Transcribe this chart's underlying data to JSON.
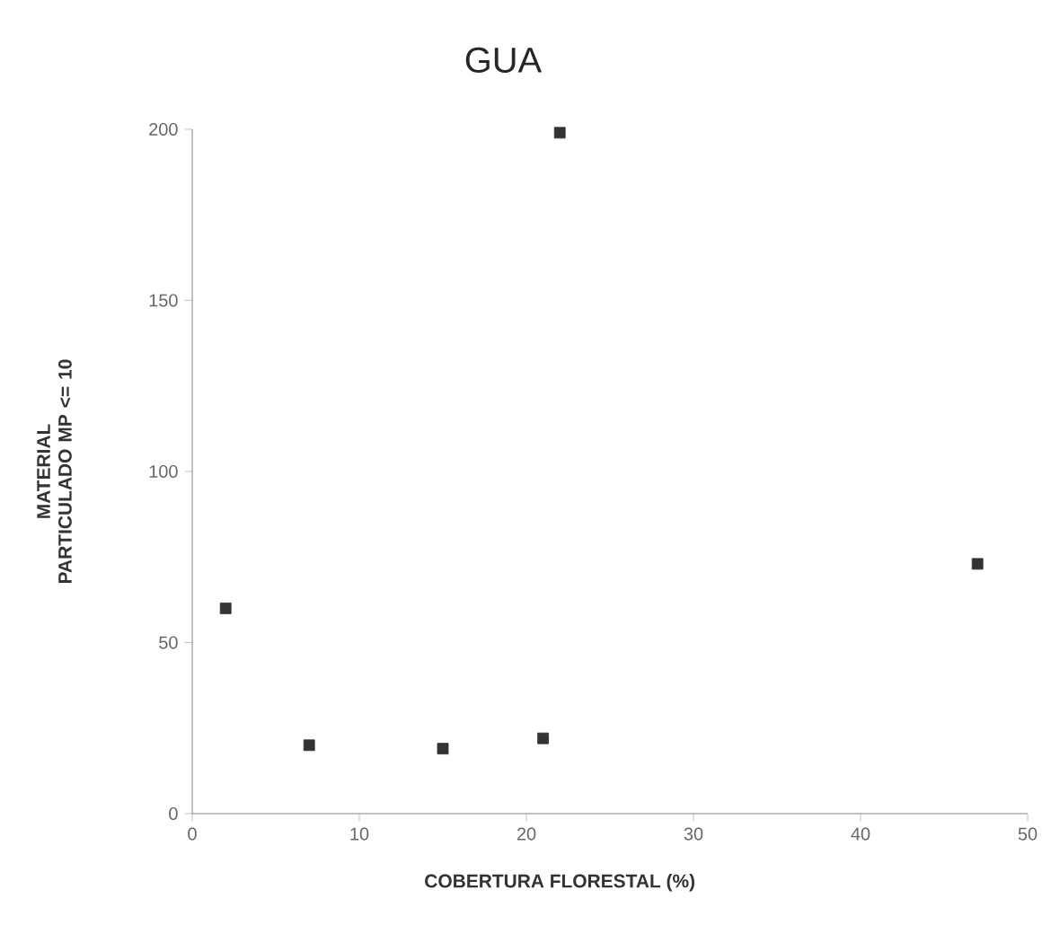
{
  "chart_data": {
    "type": "scatter",
    "title": "GUA",
    "xlabel": "COBERTURA FLORESTAL (%)",
    "ylabel": "MATERIAL PARTICULADO MP <= 10",
    "x": [
      2,
      7,
      15,
      21,
      22,
      47
    ],
    "values": [
      60,
      20,
      19,
      22,
      199,
      73
    ],
    "color": "#333333",
    "marker": "square",
    "xlim": [
      0,
      50
    ],
    "xticks": [
      0,
      10,
      20,
      30,
      40,
      50
    ],
    "ylim": [
      0,
      200
    ],
    "yticks": [
      0,
      50,
      100,
      150,
      200
    ]
  }
}
